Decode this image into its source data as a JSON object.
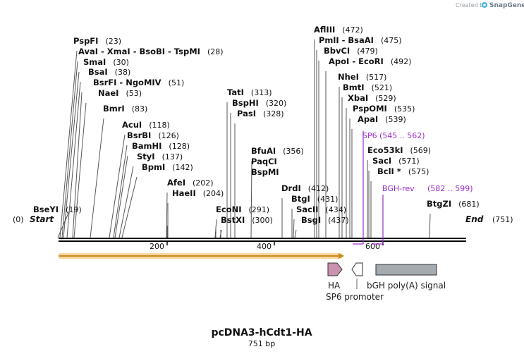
{
  "credit": {
    "prefix": "Created by",
    "brand": "SnapGene"
  },
  "plasmid": {
    "name": "pcDNA3-hCdt1-HA",
    "length_label": "751 bp"
  },
  "ruler": {
    "start_label": "Start",
    "start_pos": "(0)",
    "end_label": "End",
    "end_pos": "(751)",
    "ticks": [
      "200",
      "400",
      "600"
    ]
  },
  "sites": [
    {
      "name": "BseYI",
      "pos": "(19)"
    },
    {
      "name": "PspFI",
      "pos": "(23)"
    },
    {
      "name": "AvaI  -  XmaI  -  BsoBI  -  TspMI",
      "pos": "(28)"
    },
    {
      "name": "SmaI",
      "pos": "(30)"
    },
    {
      "name": "BsaI",
      "pos": "(38)"
    },
    {
      "name": "BsrFI  -  NgoMIV",
      "pos": "(51)"
    },
    {
      "name": "NaeI",
      "pos": "(53)"
    },
    {
      "name": "BmrI",
      "pos": "(83)"
    },
    {
      "name": "AcuI",
      "pos": "(118)"
    },
    {
      "name": "BsrBI",
      "pos": "(126)"
    },
    {
      "name": "BamHI",
      "pos": "(128)"
    },
    {
      "name": "StyI",
      "pos": "(137)"
    },
    {
      "name": "BpmI",
      "pos": "(142)"
    },
    {
      "name": "AfeI",
      "pos": "(202)"
    },
    {
      "name": "HaeII",
      "pos": "(204)"
    },
    {
      "name": "EcoNI",
      "pos": "(291)"
    },
    {
      "name": "BstXI",
      "pos": "(300)"
    },
    {
      "name": "TatI",
      "pos": "(313)"
    },
    {
      "name": "BspHI",
      "pos": "(320)"
    },
    {
      "name": "PasI",
      "pos": "(328)"
    },
    {
      "name": "BfuAI",
      "pos": "(356)"
    },
    {
      "name": "PaqCI",
      "pos": ""
    },
    {
      "name": "BspMI",
      "pos": ""
    },
    {
      "name": "DrdI",
      "pos": "(412)"
    },
    {
      "name": "BtgI",
      "pos": "(431)"
    },
    {
      "name": "SacII",
      "pos": "(434)"
    },
    {
      "name": "BsgI",
      "pos": "(437)"
    },
    {
      "name": "AflIII",
      "pos": "(472)"
    },
    {
      "name": "PmlI  -  BsaAI",
      "pos": "(475)"
    },
    {
      "name": "BbvCI",
      "pos": "(479)"
    },
    {
      "name": "ApoI  -  EcoRI",
      "pos": "(492)"
    },
    {
      "name": "NheI",
      "pos": "(517)"
    },
    {
      "name": "BmtI",
      "pos": "(521)"
    },
    {
      "name": "XbaI",
      "pos": "(529)"
    },
    {
      "name": "PspOMI",
      "pos": "(535)"
    },
    {
      "name": "ApaI",
      "pos": "(539)"
    },
    {
      "name": "Eco53kI",
      "pos": "(569)"
    },
    {
      "name": "SacI",
      "pos": "(571)"
    },
    {
      "name": "BclI *",
      "pos": "(575)"
    },
    {
      "name": "BtgZI",
      "pos": "(681)"
    }
  ],
  "primers": [
    {
      "name": "SP6",
      "range": "(545 .. 562)"
    },
    {
      "name": "BGH-rev",
      "range": "(582 .. 599)"
    }
  ],
  "features": [
    {
      "name": "HA",
      "color": "#c993ad"
    },
    {
      "name": "SP6 promoter",
      "color": "#ffffff"
    },
    {
      "name": "bGH poly(A) signal",
      "color": "#a3aab0"
    }
  ],
  "colors": {
    "orf": "#f3b04c",
    "primer": "#9b2ec9",
    "backbone": "#000000"
  }
}
